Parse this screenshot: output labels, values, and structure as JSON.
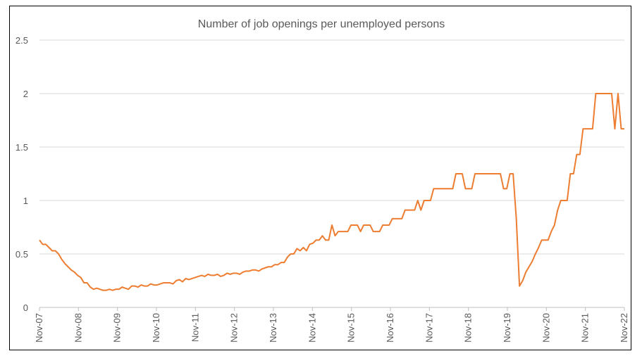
{
  "chart_data": {
    "type": "line",
    "title": "Number of job openings per unemployed persons",
    "xlabel": "",
    "ylabel": "",
    "ylim": [
      0,
      2.5
    ],
    "yticks": [
      "0",
      "0.5",
      "1",
      "1.5",
      "2",
      "2.5"
    ],
    "yticks_values": [
      0,
      0.5,
      1,
      1.5,
      2,
      2.5
    ],
    "xtick_labels": [
      "Nov-07",
      "Nov-08",
      "Nov-09",
      "Nov-10",
      "Nov-11",
      "Nov-12",
      "Nov-13",
      "Nov-14",
      "Nov-15",
      "Nov-16",
      "Nov-17",
      "Nov-18",
      "Nov-19",
      "Nov-20",
      "Nov-21",
      "Nov-22"
    ],
    "grid": true,
    "legend": "none",
    "series_color": "#ed7d31",
    "series": [
      {
        "x_start": "Nov-07",
        "x_end": "Nov-22",
        "frequency": "monthly",
        "values": [
          0.63,
          0.59,
          0.59,
          0.56,
          0.53,
          0.53,
          0.5,
          0.45,
          0.41,
          0.38,
          0.35,
          0.33,
          0.3,
          0.28,
          0.23,
          0.23,
          0.19,
          0.17,
          0.18,
          0.17,
          0.16,
          0.16,
          0.17,
          0.16,
          0.17,
          0.17,
          0.19,
          0.18,
          0.17,
          0.2,
          0.2,
          0.19,
          0.21,
          0.2,
          0.2,
          0.22,
          0.21,
          0.21,
          0.22,
          0.23,
          0.23,
          0.23,
          0.22,
          0.25,
          0.26,
          0.24,
          0.27,
          0.26,
          0.27,
          0.28,
          0.29,
          0.3,
          0.29,
          0.31,
          0.3,
          0.3,
          0.31,
          0.29,
          0.3,
          0.32,
          0.31,
          0.32,
          0.32,
          0.31,
          0.33,
          0.34,
          0.34,
          0.35,
          0.35,
          0.34,
          0.36,
          0.37,
          0.38,
          0.38,
          0.4,
          0.4,
          0.42,
          0.42,
          0.47,
          0.5,
          0.5,
          0.55,
          0.53,
          0.56,
          0.53,
          0.59,
          0.6,
          0.63,
          0.63,
          0.67,
          0.63,
          0.63,
          0.77,
          0.67,
          0.71,
          0.71,
          0.71,
          0.71,
          0.77,
          0.77,
          0.77,
          0.71,
          0.77,
          0.77,
          0.77,
          0.71,
          0.71,
          0.71,
          0.77,
          0.77,
          0.77,
          0.83,
          0.83,
          0.83,
          0.83,
          0.91,
          0.91,
          0.91,
          0.91,
          1.0,
          0.91,
          1.0,
          1.0,
          1.0,
          1.11,
          1.11,
          1.11,
          1.11,
          1.11,
          1.11,
          1.11,
          1.25,
          1.25,
          1.25,
          1.11,
          1.11,
          1.11,
          1.25,
          1.25,
          1.25,
          1.25,
          1.25,
          1.25,
          1.25,
          1.25,
          1.25,
          1.11,
          1.11,
          1.25,
          1.25,
          0.83,
          0.2,
          0.25,
          0.33,
          0.38,
          0.43,
          0.5,
          0.56,
          0.63,
          0.63,
          0.63,
          0.71,
          0.77,
          0.91,
          1.0,
          1.0,
          1.0,
          1.25,
          1.25,
          1.43,
          1.43,
          1.67,
          1.67,
          1.67,
          1.67,
          2.0,
          2.0,
          2.0,
          2.0,
          2.0,
          2.0,
          1.67,
          2.0,
          1.67,
          1.67
        ]
      }
    ]
  }
}
